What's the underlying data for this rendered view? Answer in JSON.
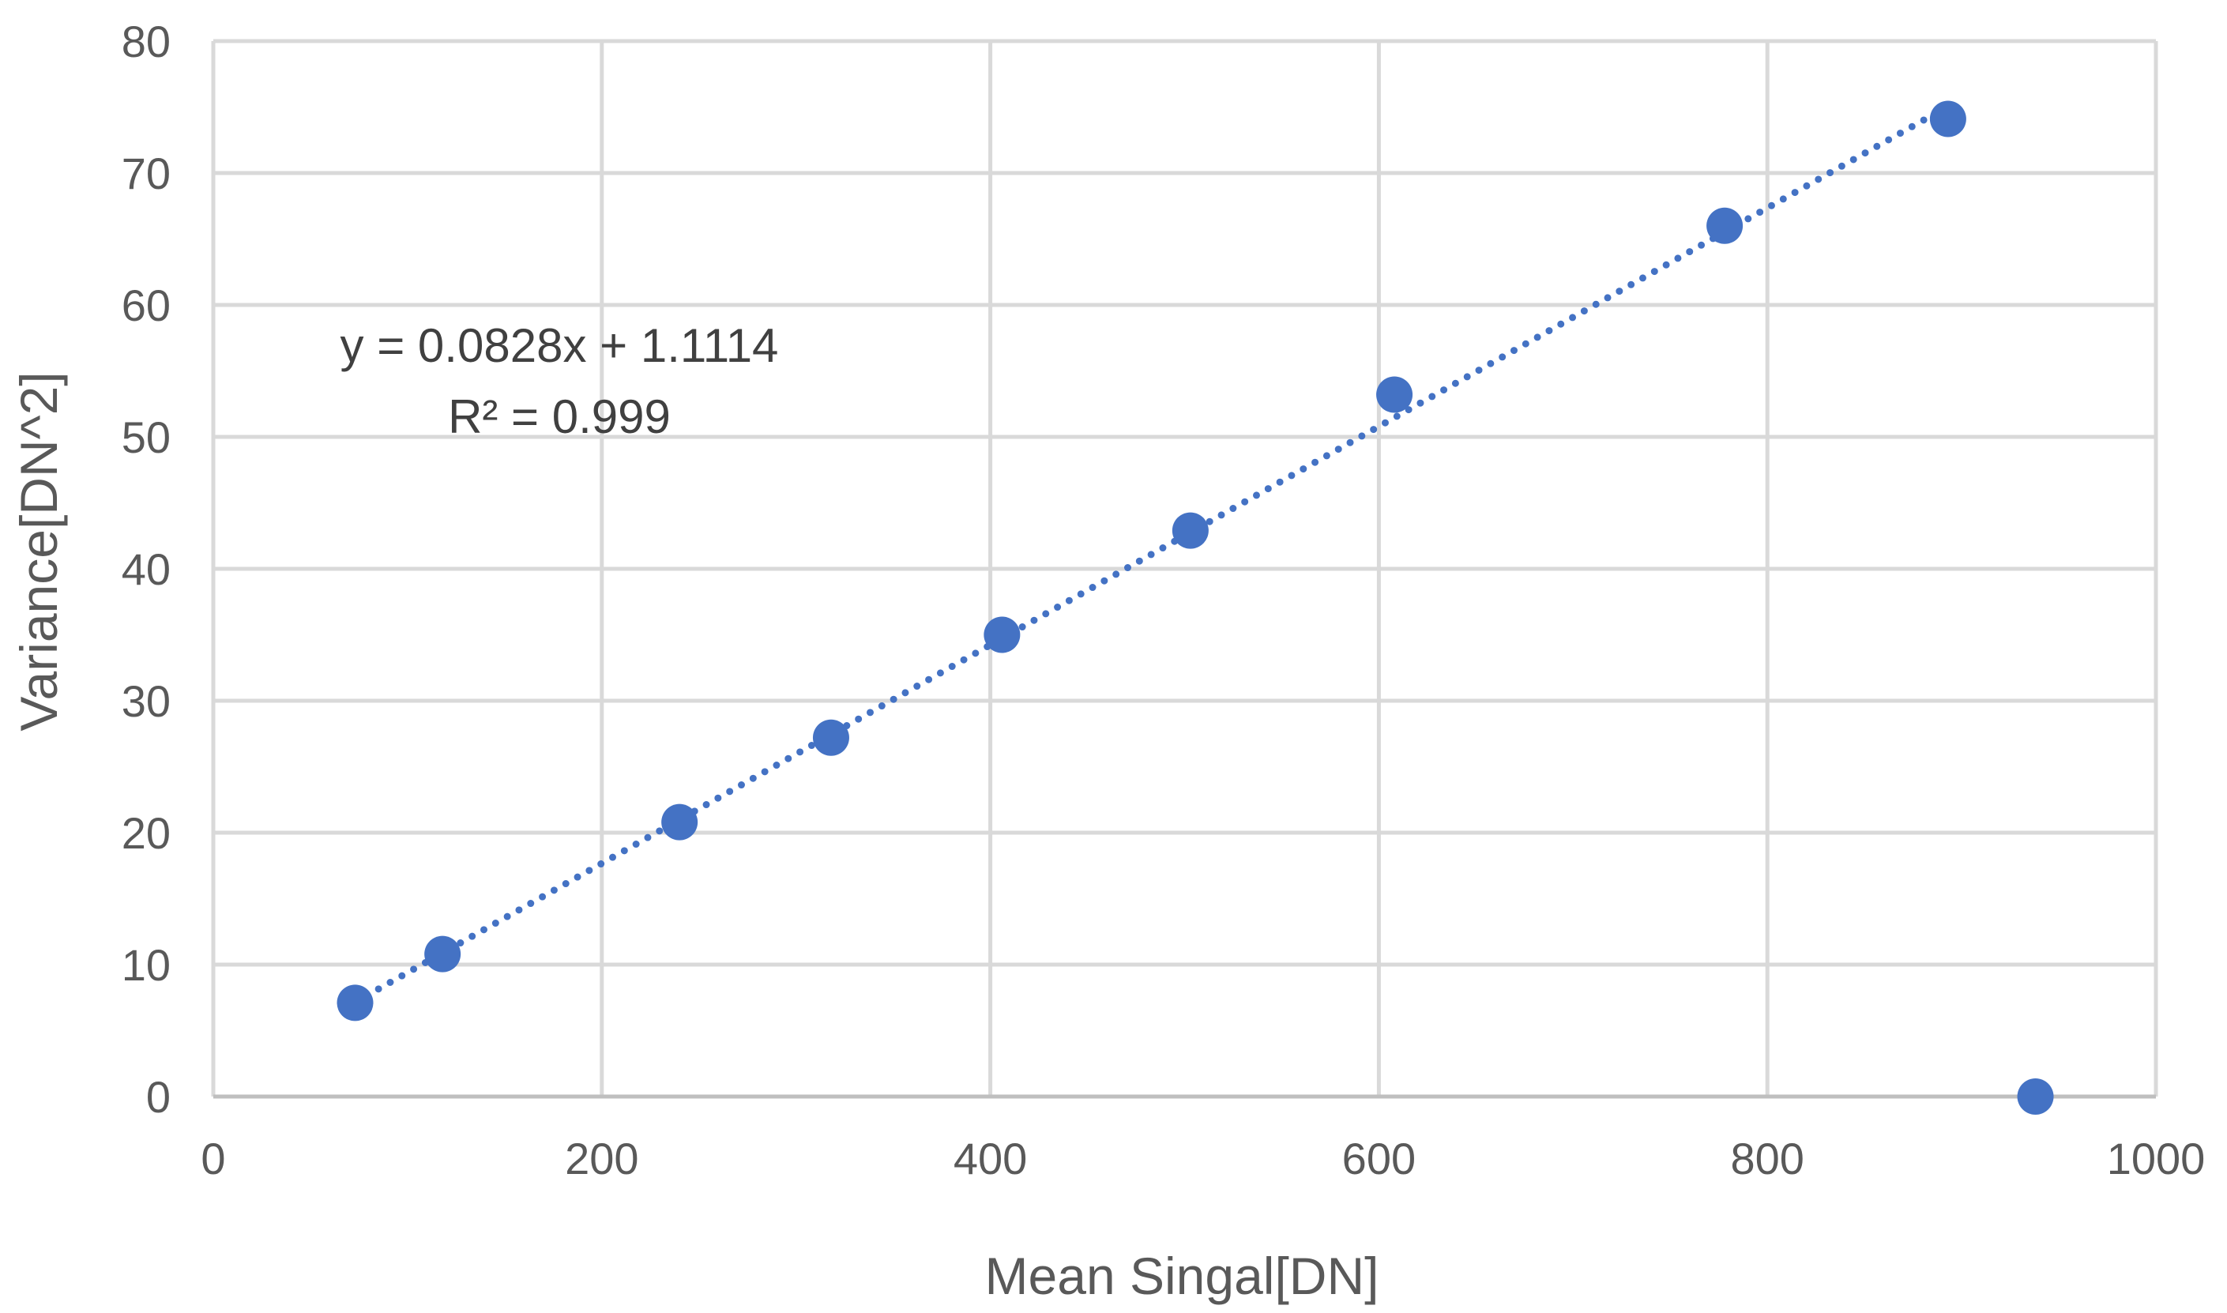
{
  "chart_data": {
    "type": "scatter",
    "title": "",
    "xlabel": "Mean Singal[DN]",
    "ylabel": "Variance[DN^2]",
    "xlim": [
      0,
      1000
    ],
    "ylim": [
      0,
      80
    ],
    "xticks": [
      0,
      200,
      400,
      600,
      800,
      1000
    ],
    "yticks": [
      0,
      10,
      20,
      30,
      40,
      50,
      60,
      70,
      80
    ],
    "grid": true,
    "series": [
      {
        "name": "Variance",
        "color": "#4472C4",
        "x": [
          73,
          118,
          240,
          318,
          406,
          503,
          608,
          778,
          893,
          938
        ],
        "y": [
          7.1,
          10.8,
          20.8,
          27.2,
          35.0,
          42.9,
          53.2,
          66.0,
          74.1,
          0.0
        ]
      }
    ],
    "trendline": {
      "type": "linear",
      "style": "dotted",
      "color": "#4472C4",
      "slope": 0.0828,
      "intercept": 1.1114,
      "x_range": [
        73,
        893
      ],
      "equation_label": "y = 0.0828x + 1.1114",
      "r2_label": "R² = 0.999"
    }
  }
}
